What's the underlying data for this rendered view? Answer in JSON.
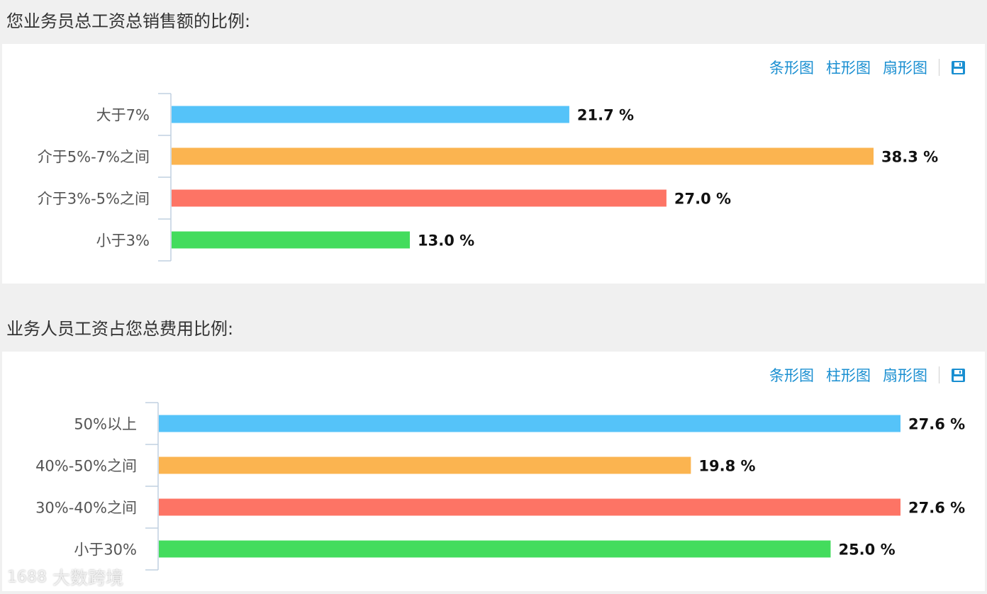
{
  "questions": [
    {
      "title": "您业务员总工资总销售额的比例:",
      "toolbar": {
        "bar_label": "条形图",
        "column_label": "柱形图",
        "pie_label": "扇形图"
      }
    },
    {
      "title": "业务人员工资占您总费用比例:",
      "toolbar": {
        "bar_label": "条形图",
        "column_label": "柱形图",
        "pie_label": "扇形图"
      }
    }
  ],
  "chart_data": [
    {
      "type": "bar",
      "orientation": "horizontal",
      "categories": [
        "大于7%",
        "介于5%-7%之间",
        "介于3%-5%之间",
        "小于3%"
      ],
      "values": [
        21.7,
        38.3,
        27.0,
        13.0
      ],
      "value_labels": [
        "21.7 %",
        "38.3 %",
        "27.0 %",
        "13.0 %"
      ],
      "colors": [
        "#55c3f9",
        "#fbb450",
        "#fd7465",
        "#43dc5d"
      ],
      "xlim": [
        0,
        38.3
      ]
    },
    {
      "type": "bar",
      "orientation": "horizontal",
      "categories": [
        "50%以上",
        "40%-50%之间",
        "30%-40%之间",
        "小于30%"
      ],
      "values": [
        27.6,
        19.8,
        27.6,
        25.0
      ],
      "value_labels": [
        "27.6 %",
        "19.8 %",
        "27.6 %",
        "25.0 %"
      ],
      "colors": [
        "#55c3f9",
        "#fbb450",
        "#fd7465",
        "#43dc5d"
      ],
      "xlim": [
        0,
        27.6
      ]
    }
  ],
  "watermark": {
    "logo": "1688",
    "text": "大数跨境"
  },
  "icons": {
    "save": "save-icon"
  }
}
